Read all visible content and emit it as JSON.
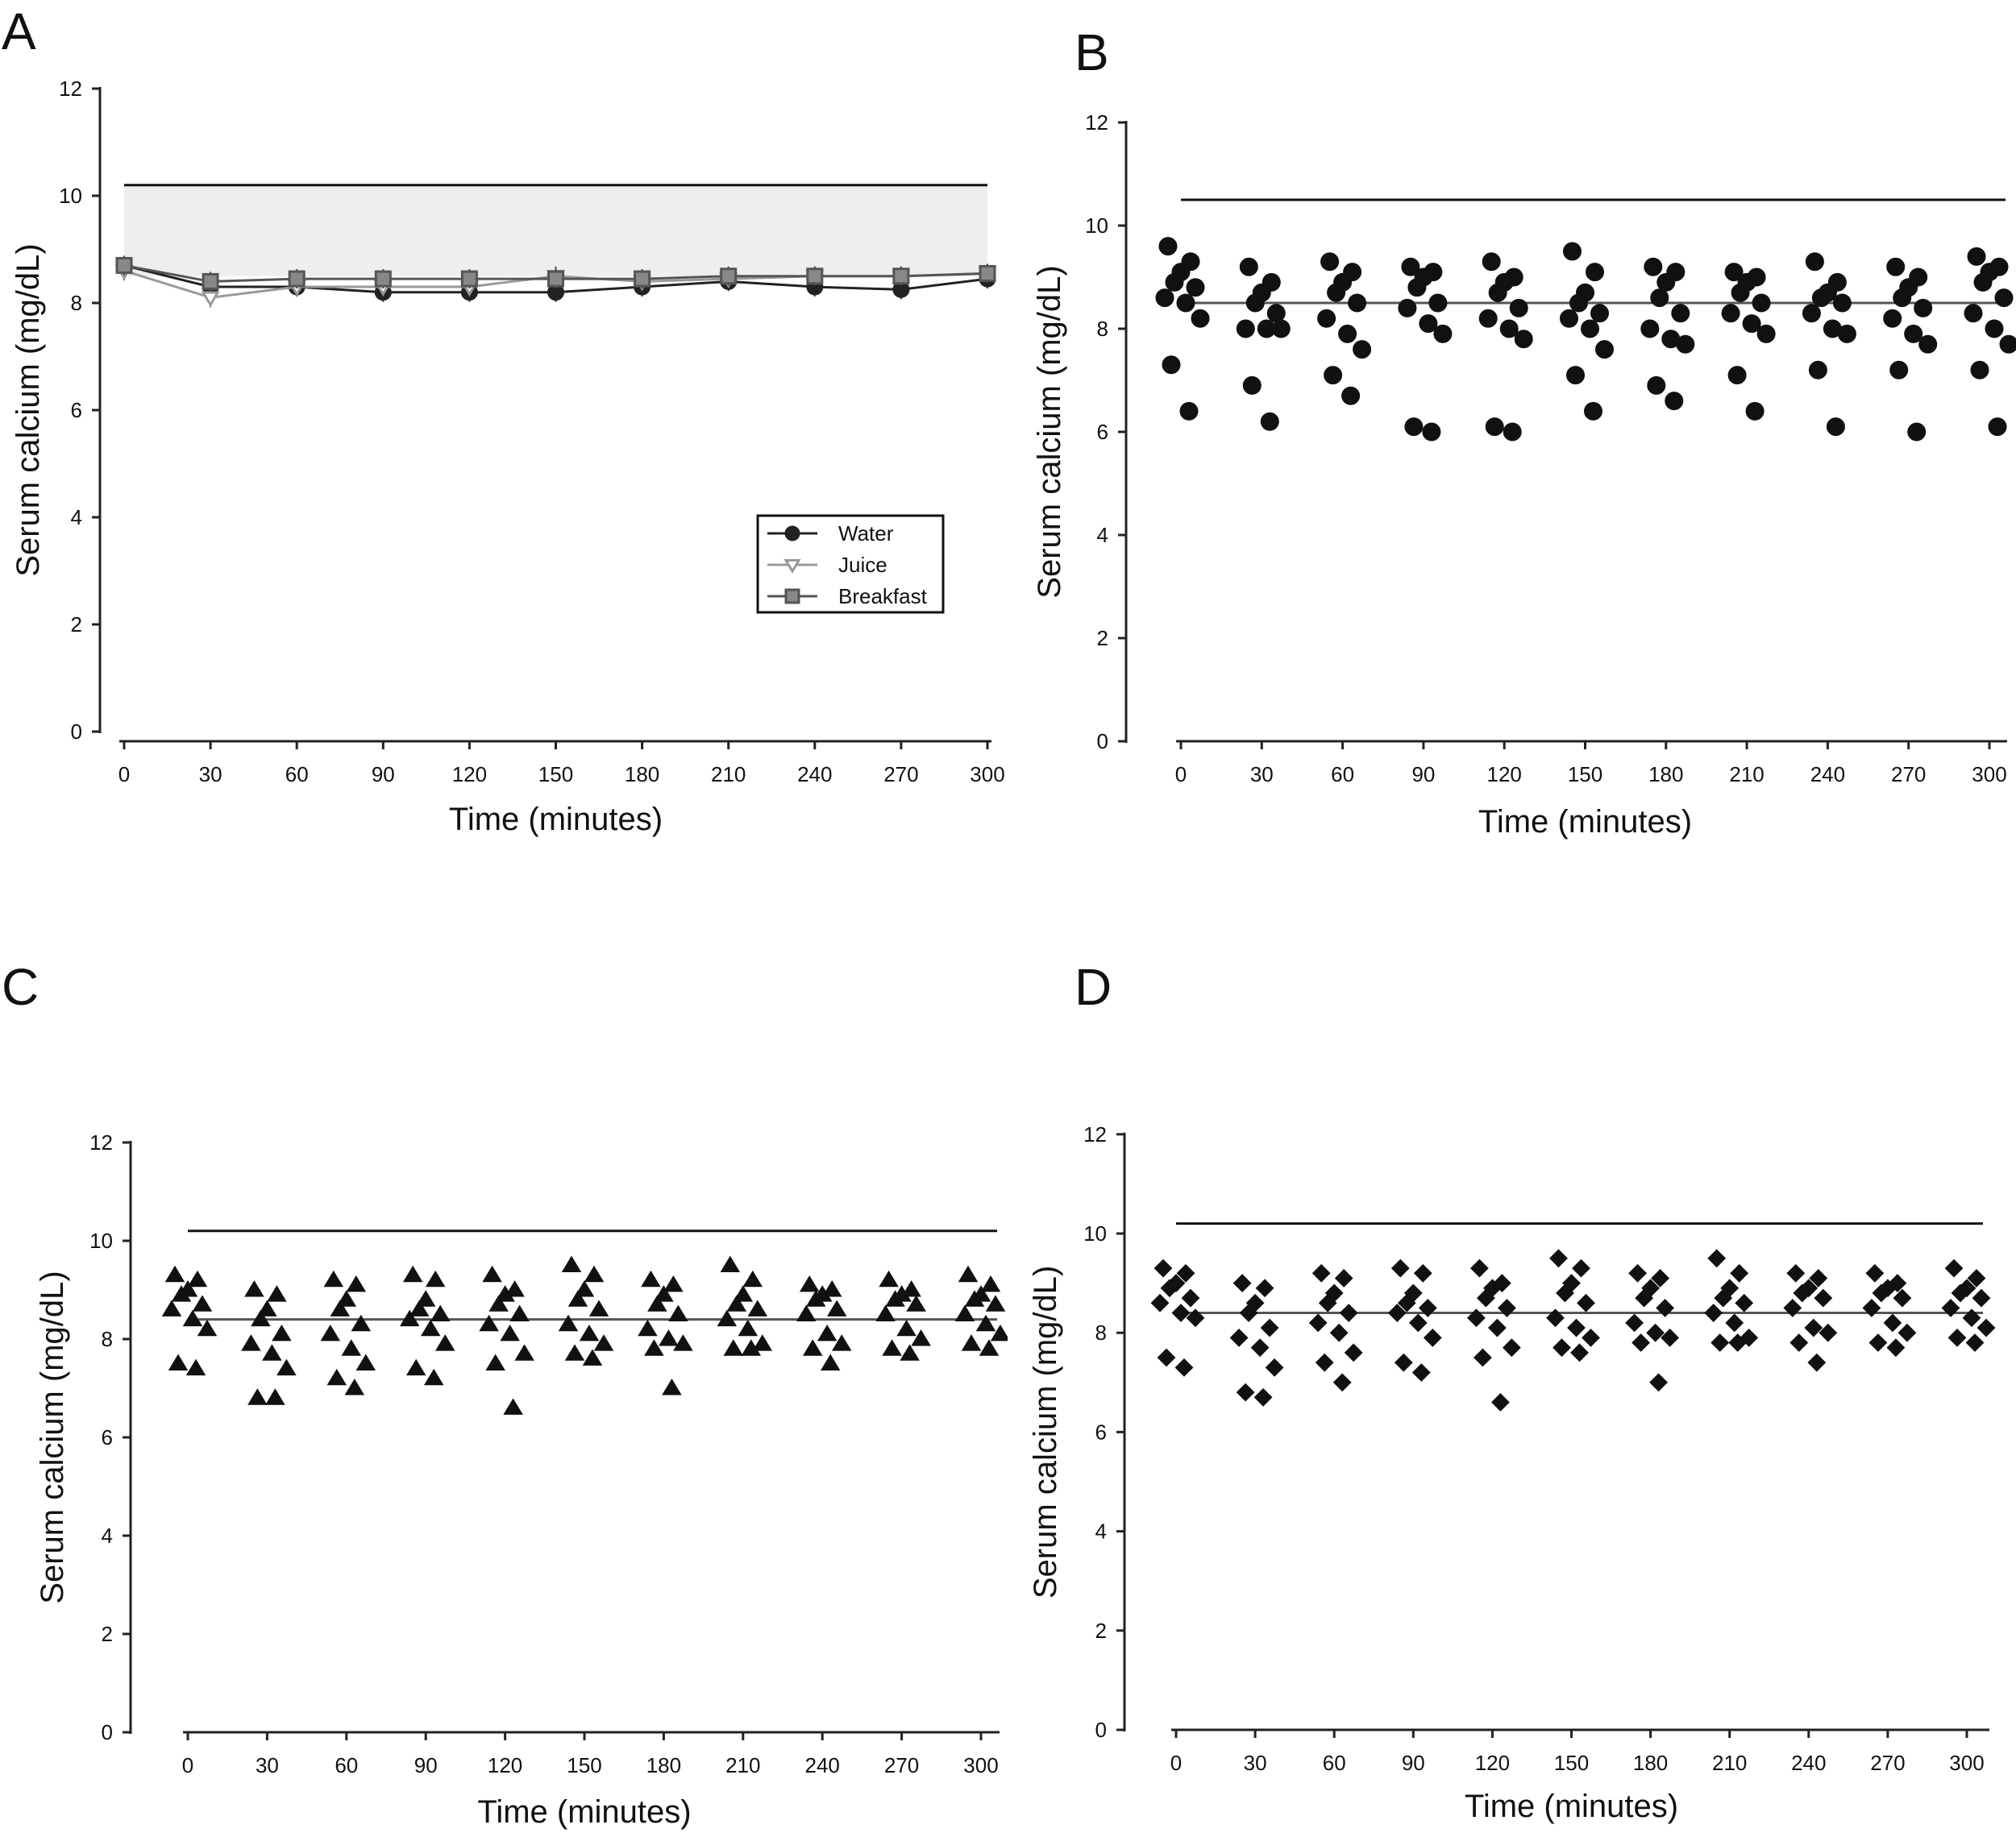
{
  "figure": {
    "panels": [
      "A",
      "B",
      "C",
      "D"
    ]
  },
  "chart_data": [
    {
      "panel": "A",
      "type": "line",
      "xlabel": "Time (minutes)",
      "ylabel": "Serum calcium (mg/dL)",
      "xlim": [
        0,
        300
      ],
      "ylim": [
        0,
        12
      ],
      "yticks": [
        0,
        2,
        4,
        6,
        8,
        10,
        12
      ],
      "xticks": [
        0,
        30,
        60,
        90,
        120,
        150,
        180,
        210,
        240,
        270,
        300
      ],
      "x": [
        0,
        30,
        60,
        90,
        120,
        150,
        180,
        210,
        240,
        270,
        300
      ],
      "normal_range": [
        8.5,
        10.2
      ],
      "reference_line": 10.2,
      "series": [
        {
          "name": "Water",
          "marker": "circle",
          "values": [
            8.7,
            8.3,
            8.3,
            8.2,
            8.2,
            8.2,
            8.3,
            8.4,
            8.3,
            8.25,
            8.45
          ]
        },
        {
          "name": "Juice",
          "marker": "triangle-down",
          "values": [
            8.6,
            8.1,
            8.3,
            8.3,
            8.3,
            8.5,
            8.4,
            8.45,
            8.5,
            8.5,
            8.55
          ]
        },
        {
          "name": "Breakfast",
          "marker": "square",
          "values": [
            8.7,
            8.4,
            8.45,
            8.45,
            8.45,
            8.45,
            8.45,
            8.5,
            8.5,
            8.5,
            8.55
          ]
        }
      ],
      "legend": {
        "entries": [
          "Water",
          "Juice",
          "Breakfast"
        ],
        "placement": "right-middle"
      }
    },
    {
      "panel": "B",
      "type": "scatter",
      "marker": "circle",
      "xlabel": "Time (minutes)",
      "ylabel": "Serum calcium (mg/dL)",
      "xlim": [
        0,
        300
      ],
      "ylim": [
        0,
        12
      ],
      "yticks": [
        0,
        2,
        4,
        6,
        8,
        10,
        12
      ],
      "xticks": [
        0,
        30,
        60,
        90,
        120,
        150,
        180,
        210,
        240,
        270,
        300
      ],
      "reference_line": 10.5,
      "mean_line": 8.5,
      "groups": [
        {
          "x": 0,
          "values": [
            9.6,
            9.3,
            9.1,
            8.9,
            8.8,
            8.6,
            8.5,
            8.2,
            7.3,
            6.4
          ]
        },
        {
          "x": 30,
          "values": [
            9.2,
            8.9,
            8.7,
            8.5,
            8.3,
            8.0,
            8.0,
            8.0,
            6.9,
            6.2
          ]
        },
        {
          "x": 60,
          "values": [
            9.3,
            9.1,
            8.9,
            8.7,
            8.5,
            8.2,
            7.9,
            7.6,
            7.1,
            6.7
          ]
        },
        {
          "x": 90,
          "values": [
            9.2,
            9.1,
            9.0,
            8.8,
            8.5,
            8.4,
            8.1,
            7.9,
            6.1,
            6.0
          ]
        },
        {
          "x": 120,
          "values": [
            9.3,
            9.0,
            8.9,
            8.7,
            8.4,
            8.2,
            8.0,
            7.8,
            6.1,
            6.0
          ]
        },
        {
          "x": 150,
          "values": [
            9.5,
            9.1,
            8.7,
            8.5,
            8.3,
            8.2,
            8.0,
            7.6,
            7.1,
            6.4
          ]
        },
        {
          "x": 180,
          "values": [
            9.2,
            9.1,
            8.9,
            8.6,
            8.3,
            8.0,
            7.8,
            7.7,
            6.9,
            6.6
          ]
        },
        {
          "x": 210,
          "values": [
            9.1,
            9.0,
            8.9,
            8.7,
            8.5,
            8.3,
            8.1,
            7.9,
            7.1,
            6.4
          ]
        },
        {
          "x": 240,
          "values": [
            9.3,
            8.9,
            8.7,
            8.6,
            8.5,
            8.3,
            8.0,
            7.9,
            7.2,
            6.1
          ]
        },
        {
          "x": 270,
          "values": [
            9.2,
            9.0,
            8.8,
            8.6,
            8.4,
            8.2,
            7.9,
            7.7,
            7.2,
            6.0
          ]
        },
        {
          "x": 300,
          "values": [
            9.4,
            9.2,
            9.1,
            8.9,
            8.6,
            8.3,
            8.0,
            7.7,
            7.2,
            6.1
          ]
        }
      ]
    },
    {
      "panel": "C",
      "type": "scatter",
      "marker": "triangle-up",
      "xlabel": "Time (minutes)",
      "ylabel": "Serum calcium (mg/dL)",
      "xlim": [
        0,
        300
      ],
      "ylim": [
        0,
        12
      ],
      "yticks": [
        0,
        2,
        4,
        6,
        8,
        10,
        12
      ],
      "xticks": [
        0,
        30,
        60,
        90,
        120,
        150,
        180,
        210,
        240,
        270,
        300
      ],
      "reference_line": 10.2,
      "mean_line": 8.4,
      "groups": [
        {
          "x": 0,
          "values": [
            9.3,
            9.2,
            9.0,
            8.9,
            8.7,
            8.6,
            8.4,
            8.2,
            7.5,
            7.4
          ]
        },
        {
          "x": 30,
          "values": [
            9.0,
            8.9,
            8.6,
            8.4,
            8.1,
            7.9,
            7.7,
            7.4,
            6.8,
            6.8
          ]
        },
        {
          "x": 60,
          "values": [
            9.2,
            9.1,
            8.8,
            8.6,
            8.3,
            8.1,
            7.8,
            7.5,
            7.2,
            7.0
          ]
        },
        {
          "x": 90,
          "values": [
            9.3,
            9.2,
            8.8,
            8.6,
            8.5,
            8.4,
            8.2,
            7.9,
            7.4,
            7.2
          ]
        },
        {
          "x": 120,
          "values": [
            9.3,
            9.0,
            8.9,
            8.7,
            8.5,
            8.3,
            8.1,
            7.7,
            7.5,
            6.6
          ]
        },
        {
          "x": 150,
          "values": [
            9.5,
            9.3,
            9.0,
            8.8,
            8.6,
            8.3,
            8.1,
            7.9,
            7.7,
            7.6
          ]
        },
        {
          "x": 180,
          "values": [
            9.2,
            9.1,
            8.9,
            8.7,
            8.5,
            8.2,
            8.0,
            7.9,
            7.8,
            7.0
          ]
        },
        {
          "x": 210,
          "values": [
            9.5,
            9.2,
            8.9,
            8.7,
            8.6,
            8.4,
            8.2,
            7.9,
            7.8,
            7.8
          ]
        },
        {
          "x": 240,
          "values": [
            9.1,
            9.0,
            8.9,
            8.8,
            8.6,
            8.5,
            8.1,
            7.9,
            7.8,
            7.5
          ]
        },
        {
          "x": 270,
          "values": [
            9.2,
            9.0,
            8.9,
            8.8,
            8.7,
            8.5,
            8.2,
            8.0,
            7.8,
            7.7
          ]
        },
        {
          "x": 300,
          "values": [
            9.3,
            9.1,
            8.9,
            8.8,
            8.7,
            8.5,
            8.3,
            8.1,
            7.9,
            7.8
          ]
        }
      ]
    },
    {
      "panel": "D",
      "type": "scatter",
      "marker": "diamond",
      "xlabel": "Time (minutes)",
      "ylabel": "Serum calcium (mg/dL)",
      "xlim": [
        0,
        300
      ],
      "ylim": [
        0,
        12
      ],
      "yticks": [
        0,
        2,
        4,
        6,
        8,
        10,
        12
      ],
      "xticks": [
        0,
        30,
        60,
        90,
        120,
        150,
        180,
        210,
        240,
        270,
        300
      ],
      "reference_line": 10.2,
      "mean_line": 8.4,
      "groups": [
        {
          "x": 0,
          "values": [
            9.3,
            9.2,
            9.0,
            8.9,
            8.7,
            8.6,
            8.4,
            8.3,
            7.5,
            7.3
          ]
        },
        {
          "x": 30,
          "values": [
            9.0,
            8.9,
            8.6,
            8.4,
            8.1,
            7.9,
            7.7,
            7.3,
            6.8,
            6.7
          ]
        },
        {
          "x": 60,
          "values": [
            9.2,
            9.1,
            8.8,
            8.6,
            8.4,
            8.2,
            8.0,
            7.6,
            7.4,
            7.0
          ]
        },
        {
          "x": 90,
          "values": [
            9.3,
            9.2,
            8.8,
            8.6,
            8.5,
            8.4,
            8.2,
            7.9,
            7.4,
            7.2
          ]
        },
        {
          "x": 120,
          "values": [
            9.3,
            9.0,
            8.9,
            8.7,
            8.5,
            8.3,
            8.1,
            7.7,
            7.5,
            6.6
          ]
        },
        {
          "x": 150,
          "values": [
            9.5,
            9.3,
            9.0,
            8.8,
            8.6,
            8.3,
            8.1,
            7.9,
            7.7,
            7.6
          ]
        },
        {
          "x": 180,
          "values": [
            9.2,
            9.1,
            8.9,
            8.7,
            8.5,
            8.2,
            8.0,
            7.9,
            7.8,
            7.0
          ]
        },
        {
          "x": 210,
          "values": [
            9.5,
            9.2,
            8.9,
            8.7,
            8.6,
            8.4,
            8.2,
            7.9,
            7.8,
            7.8
          ]
        },
        {
          "x": 240,
          "values": [
            9.2,
            9.1,
            8.9,
            8.8,
            8.7,
            8.5,
            8.1,
            8.0,
            7.8,
            7.4
          ]
        },
        {
          "x": 270,
          "values": [
            9.2,
            9.0,
            8.9,
            8.8,
            8.7,
            8.5,
            8.2,
            8.0,
            7.8,
            7.7
          ]
        },
        {
          "x": 300,
          "values": [
            9.3,
            9.1,
            8.9,
            8.8,
            8.7,
            8.5,
            8.3,
            8.1,
            7.9,
            7.8
          ]
        }
      ]
    }
  ]
}
